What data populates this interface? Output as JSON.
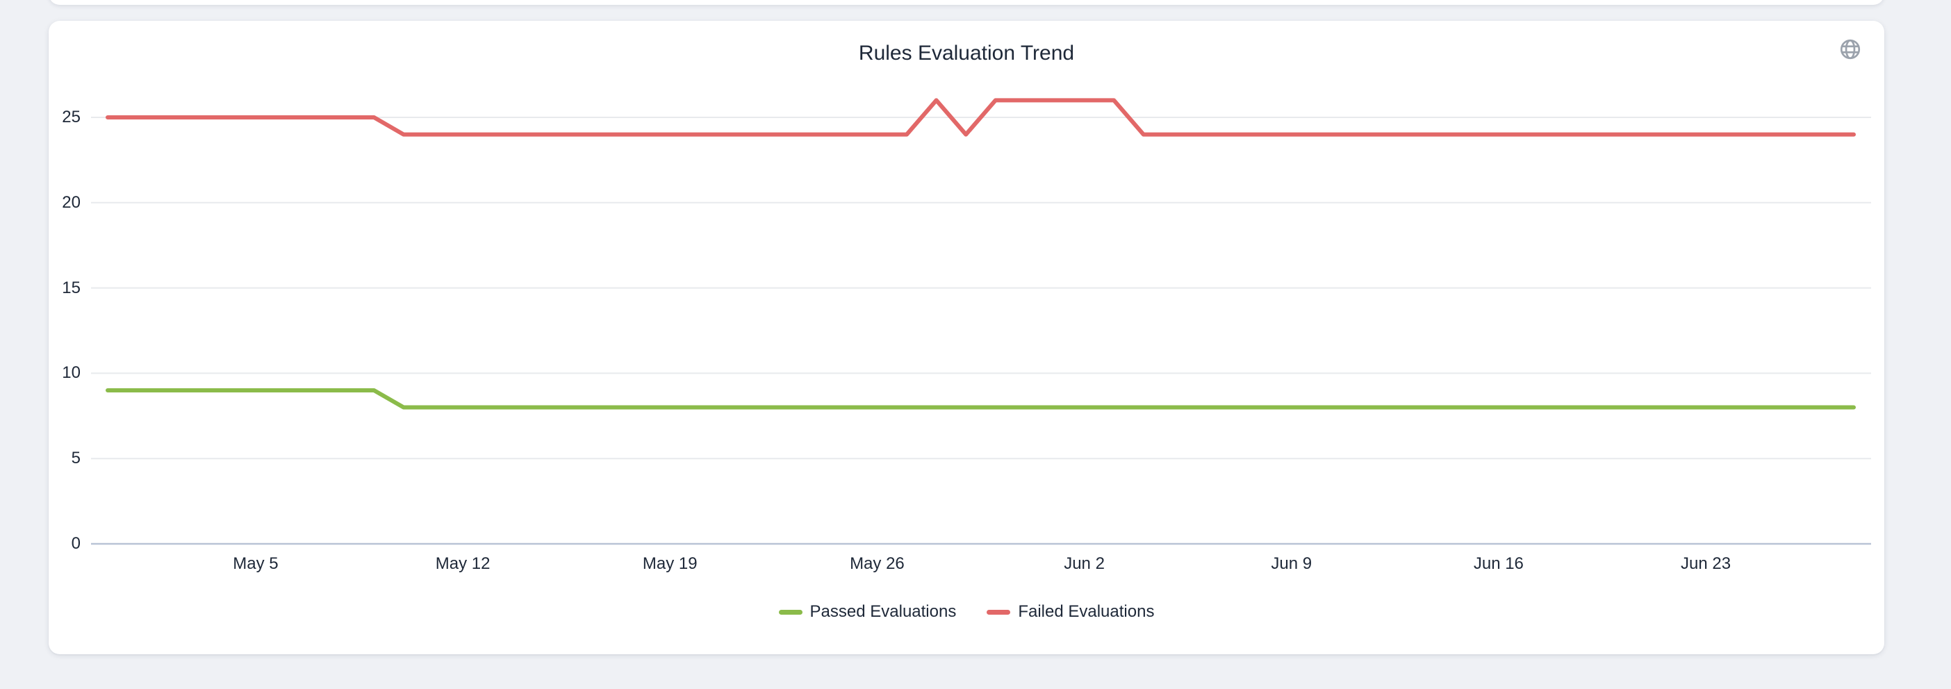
{
  "page": {
    "background_color": "#eff1f5",
    "card_background_color": "#ffffff"
  },
  "header": {
    "globe_icon_color": "#9ba2ac"
  },
  "chart_data": {
    "type": "line",
    "title": "Rules Evaluation Trend",
    "xlabel": "",
    "ylabel": "",
    "ylim": [
      0,
      26.4
    ],
    "grid": "horizontal",
    "legend_position": "bottom",
    "text_color": "#1e2838",
    "gridline_color": "#e8eaed",
    "axis_line_color": "#b9c3d6",
    "yticks": [
      0,
      5,
      10,
      15,
      20,
      25
    ],
    "xticks": [
      {
        "label": "May 5",
        "index": 5
      },
      {
        "label": "May 12",
        "index": 12
      },
      {
        "label": "May 19",
        "index": 19
      },
      {
        "label": "May 26",
        "index": 26
      },
      {
        "label": "Jun 2",
        "index": 33
      },
      {
        "label": "Jun 9",
        "index": 40
      },
      {
        "label": "Jun 16",
        "index": 47
      },
      {
        "label": "Jun 23",
        "index": 54
      }
    ],
    "x": [
      "Apr 30",
      "May 1",
      "May 2",
      "May 3",
      "May 4",
      "May 5",
      "May 6",
      "May 7",
      "May 8",
      "May 9",
      "May 10",
      "May 11",
      "May 12",
      "May 13",
      "May 14",
      "May 15",
      "May 16",
      "May 17",
      "May 18",
      "May 19",
      "May 20",
      "May 21",
      "May 22",
      "May 23",
      "May 24",
      "May 25",
      "May 26",
      "May 27",
      "May 28",
      "May 29",
      "May 30",
      "May 31",
      "Jun 1",
      "Jun 2",
      "Jun 3",
      "Jun 4",
      "Jun 5",
      "Jun 6",
      "Jun 7",
      "Jun 8",
      "Jun 9",
      "Jun 10",
      "Jun 11",
      "Jun 12",
      "Jun 13",
      "Jun 14",
      "Jun 15",
      "Jun 16",
      "Jun 17",
      "Jun 18",
      "Jun 19",
      "Jun 20",
      "Jun 21",
      "Jun 22",
      "Jun 23",
      "Jun 24",
      "Jun 25",
      "Jun 26",
      "Jun 27",
      "Jun 28"
    ],
    "series": [
      {
        "name": "Passed Evaluations",
        "color": "#8bbb4a",
        "values": [
          9,
          9,
          9,
          9,
          9,
          9,
          9,
          9,
          9,
          9,
          8,
          8,
          8,
          8,
          8,
          8,
          8,
          8,
          8,
          8,
          8,
          8,
          8,
          8,
          8,
          8,
          8,
          8,
          8,
          8,
          8,
          8,
          8,
          8,
          8,
          8,
          8,
          8,
          8,
          8,
          8,
          8,
          8,
          8,
          8,
          8,
          8,
          8,
          8,
          8,
          8,
          8,
          8,
          8,
          8,
          8,
          8,
          8,
          8,
          8
        ]
      },
      {
        "name": "Failed Evaluations",
        "color": "#e26868",
        "values": [
          25,
          25,
          25,
          25,
          25,
          25,
          25,
          25,
          25,
          25,
          24,
          24,
          24,
          24,
          24,
          24,
          24,
          24,
          24,
          24,
          24,
          24,
          24,
          24,
          24,
          24,
          24,
          24,
          26,
          24,
          26,
          26,
          26,
          26,
          26,
          24,
          24,
          24,
          24,
          24,
          24,
          24,
          24,
          24,
          24,
          24,
          24,
          24,
          24,
          24,
          24,
          24,
          24,
          24,
          24,
          24,
          24,
          24,
          24,
          24
        ]
      }
    ]
  }
}
